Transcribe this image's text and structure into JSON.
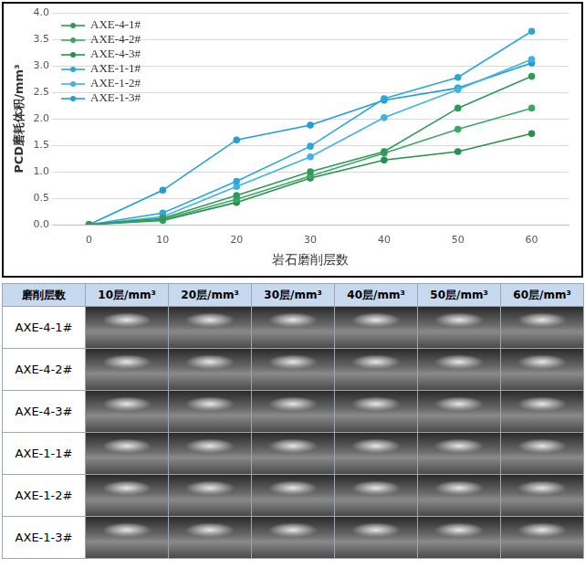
{
  "chart_data": {
    "type": "line",
    "x_label": "岩石磨削层数",
    "y_label": "PCD磨耗体积/mm³",
    "x": [
      0,
      10,
      20,
      30,
      40,
      50,
      60
    ],
    "xlim": [
      -5,
      65
    ],
    "xticks": [
      0,
      10,
      20,
      30,
      40,
      50,
      60
    ],
    "ylim": [
      0,
      4
    ],
    "yticks": [
      {
        "value": 0,
        "label": "0.0"
      },
      0.5,
      {
        "value": 1,
        "label": "1.0"
      },
      1.5,
      {
        "value": 2,
        "label": "2.0"
      },
      2.5,
      {
        "value": 3,
        "label": "3.0"
      },
      3.5,
      {
        "value": 4,
        "label": "4.0"
      }
    ],
    "grid": true,
    "legend": "upper left",
    "marker": "circle",
    "line_style": "solid",
    "series": [
      {
        "name": "AXE-4-1#",
        "color": "#2f9a58",
        "values": [
          0,
          0.12,
          0.55,
          1.0,
          1.38,
          2.2,
          2.8
        ]
      },
      {
        "name": "AXE-4-2#",
        "color": "#3aa862",
        "values": [
          0,
          0.1,
          0.48,
          0.92,
          1.35,
          1.8,
          2.2
        ]
      },
      {
        "name": "AXE-4-3#",
        "color": "#27904f",
        "values": [
          0,
          0.08,
          0.42,
          0.88,
          1.22,
          1.38,
          1.72
        ]
      },
      {
        "name": "AXE-1-1#",
        "color": "#2aa8dc",
        "values": [
          0,
          0.22,
          0.82,
          1.48,
          2.38,
          2.78,
          3.65
        ]
      },
      {
        "name": "AXE-1-2#",
        "color": "#3fb3e3",
        "values": [
          0,
          0.15,
          0.72,
          1.28,
          2.02,
          2.55,
          3.12
        ]
      },
      {
        "name": "AXE-1-3#",
        "color": "#1f9fd3",
        "values": [
          0,
          0.65,
          1.6,
          1.88,
          2.35,
          2.58,
          3.05
        ]
      }
    ]
  },
  "table": {
    "columns": [
      "磨削层数",
      "10层/mm³",
      "20层/mm³",
      "30层/mm³",
      "40层/mm³",
      "50层/mm³",
      "60层/mm³"
    ],
    "row_labels": [
      "AXE-4-1#",
      "AXE-4-2#",
      "AXE-4-3#",
      "AXE-1-1#",
      "AXE-1-2#",
      "AXE-1-3#"
    ]
  }
}
